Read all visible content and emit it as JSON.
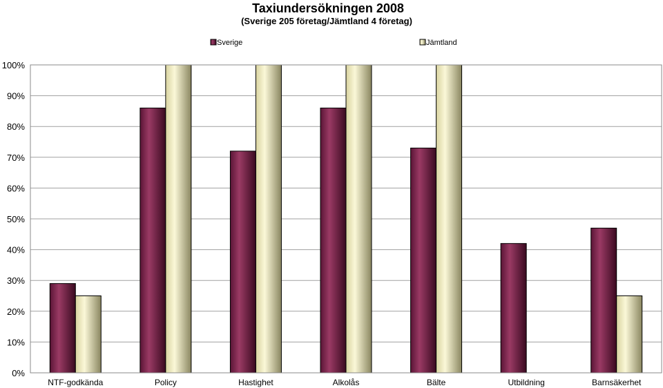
{
  "chart_data": {
    "type": "bar",
    "title": "Taxiundersökningen 2008",
    "subtitle": "(Sverige 205 företag/Jämtland 4 företag)",
    "xlabel": "",
    "ylabel": "",
    "categories": [
      "NTF-godkända",
      "Policy",
      "Hastighet",
      "Alkolås",
      "Bälte",
      "Utbildning",
      "Barnsäkerhet"
    ],
    "series": [
      {
        "name": "Sverige",
        "values": [
          29,
          86,
          72,
          86,
          73,
          42,
          47
        ],
        "color": "#7a2a4e"
      },
      {
        "name": "Jämtland",
        "values": [
          25,
          100,
          100,
          100,
          100,
          0,
          25
        ],
        "color": "#f2eec0"
      }
    ],
    "ylim": [
      0,
      100
    ],
    "y_ticks": [
      "0%",
      "10%",
      "20%",
      "30%",
      "40%",
      "50%",
      "60%",
      "70%",
      "80%",
      "90%",
      "100%"
    ],
    "y_tick_values": [
      0,
      10,
      20,
      30,
      40,
      50,
      60,
      70,
      80,
      90,
      100
    ],
    "grid": true,
    "legend_position": "top"
  }
}
